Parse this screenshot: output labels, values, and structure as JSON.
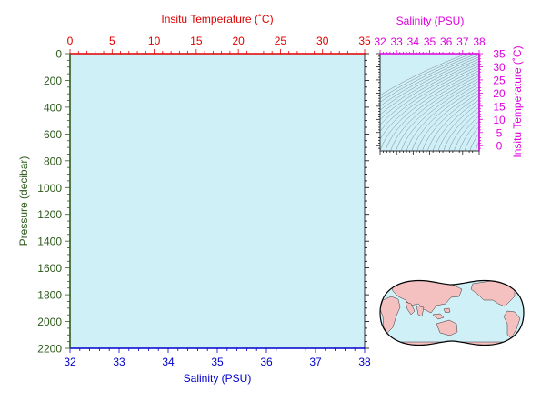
{
  "chart_data": [
    {
      "type": "line",
      "panel": "profile",
      "title": "",
      "top_axis": {
        "label": "Insitu Temperature (˚C)",
        "range": [
          0,
          35
        ],
        "ticks": [
          "0",
          "5",
          "10",
          "15",
          "20",
          "25",
          "30",
          "35"
        ],
        "color": "#e00000"
      },
      "bottom_axis": {
        "label": "Salinity (PSU)",
        "range": [
          32,
          38
        ],
        "ticks": [
          "32",
          "33",
          "34",
          "35",
          "36",
          "37",
          "38"
        ],
        "color": "#0000cc"
      },
      "left_axis": {
        "label": "Pressure (decibar)",
        "range": [
          0,
          2200
        ],
        "inverted": true,
        "ticks": [
          "0",
          "200",
          "400",
          "600",
          "800",
          "1000",
          "1200",
          "1400",
          "1600",
          "1800",
          "2000",
          "2200"
        ],
        "color": "#2e5a1c"
      },
      "series": [],
      "background": "#d0f0f8",
      "grid": false
    },
    {
      "type": "line",
      "panel": "ts-diagram",
      "title": "",
      "top_axis": {
        "label": "Salinity (PSU)",
        "range": [
          32,
          38
        ],
        "ticks": [
          "32",
          "33",
          "34",
          "35",
          "36",
          "37",
          "38"
        ],
        "color": "#dd00dd"
      },
      "right_axis": {
        "label": "Insitu Temperature (˚C)",
        "range": [
          -2,
          35
        ],
        "ticks": [
          "0",
          "5",
          "10",
          "15",
          "20",
          "25",
          "30",
          "35"
        ],
        "color": "#dd00dd"
      },
      "density_contours": true,
      "background": "#d0f0f8",
      "grid": false
    }
  ],
  "colors": {
    "panel_fill": "#d0f0f8",
    "temperature_axis": "#e00000",
    "salinity_axis": "#0000cc",
    "pressure_axis": "#2e5a1c",
    "ts_axis": "#dd00dd",
    "land": "#f4c0c0",
    "ocean": "#d0f0f8"
  },
  "map": {
    "projection": "world-map-pacific-centered",
    "icon": "world-map-icon"
  }
}
